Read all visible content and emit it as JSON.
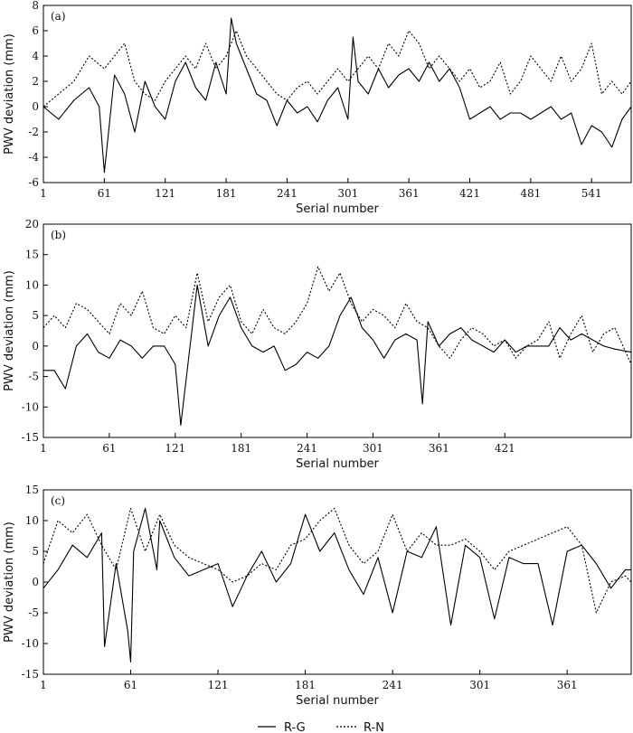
{
  "chart_data": [
    {
      "type": "line",
      "panel_label": "(a)",
      "xlabel": "Serial number",
      "ylabel": "PWV deviation (mm)",
      "xlim": [
        1,
        580
      ],
      "ylim": [
        -6,
        8
      ],
      "xticks": [
        1,
        61,
        121,
        181,
        241,
        301,
        361,
        421,
        481,
        541
      ],
      "yticks": [
        -6,
        -4,
        -2,
        0,
        2,
        4,
        6,
        8
      ],
      "series": [
        {
          "name": "R-G",
          "style": "solid",
          "x": [
            1,
            16,
            31,
            46,
            56,
            61,
            71,
            81,
            91,
            101,
            111,
            121,
            131,
            141,
            151,
            161,
            171,
            181,
            186,
            191,
            201,
            211,
            221,
            231,
            241,
            251,
            261,
            271,
            281,
            291,
            301,
            306,
            311,
            321,
            331,
            341,
            351,
            361,
            371,
            381,
            391,
            401,
            411,
            421,
            431,
            441,
            451,
            461,
            471,
            481,
            491,
            501,
            511,
            521,
            531,
            541,
            551,
            561,
            571,
            580
          ],
          "y": [
            0,
            -1,
            0.5,
            1.5,
            0,
            -5.2,
            2.5,
            1,
            -2,
            2,
            0,
            -1,
            2,
            3.5,
            1.5,
            0.5,
            3.5,
            1,
            7,
            5,
            3,
            1,
            0.5,
            -1.5,
            0.5,
            -0.5,
            0,
            -1.2,
            0.5,
            1.5,
            -1,
            5.5,
            2,
            1,
            3,
            1.5,
            2.5,
            3,
            2,
            3.5,
            2,
            3,
            1.5,
            -1,
            -0.5,
            0,
            -1,
            -0.5,
            -0.5,
            -1,
            -0.5,
            0,
            -1,
            -0.5,
            -3,
            -1.5,
            -2,
            -3.2,
            -1,
            0
          ]
        },
        {
          "name": "R-N",
          "style": "dotted",
          "x": [
            1,
            16,
            31,
            46,
            61,
            71,
            81,
            91,
            101,
            111,
            121,
            131,
            141,
            151,
            161,
            171,
            181,
            191,
            201,
            211,
            221,
            231,
            241,
            251,
            261,
            271,
            281,
            291,
            301,
            311,
            321,
            331,
            341,
            351,
            361,
            371,
            381,
            391,
            401,
            411,
            421,
            431,
            441,
            451,
            461,
            471,
            481,
            491,
            501,
            511,
            521,
            531,
            541,
            551,
            561,
            571,
            580
          ],
          "y": [
            0,
            1,
            2,
            4,
            3,
            4,
            5,
            2,
            1,
            0.5,
            2,
            3,
            4,
            3,
            5,
            3,
            4,
            6,
            4,
            3,
            2,
            1,
            0.5,
            1.5,
            2,
            1,
            2,
            3,
            2,
            3,
            4,
            3,
            5,
            4,
            6,
            5,
            3,
            4,
            3,
            2,
            3,
            1.5,
            2,
            3.5,
            1,
            2,
            4,
            3,
            2,
            4,
            2,
            3,
            5,
            1,
            2,
            1,
            2
          ]
        }
      ]
    },
    {
      "type": "line",
      "panel_label": "(b)",
      "xlabel": "Serial number",
      "ylabel": "PWV deviation (mm)",
      "xlim": [
        1,
        536
      ],
      "ylim": [
        -15,
        20
      ],
      "xticks": [
        1,
        61,
        121,
        181,
        241,
        301,
        361,
        421
      ],
      "yticks": [
        -15,
        -10,
        -5,
        0,
        5,
        10,
        15,
        20
      ],
      "series": [
        {
          "name": "R-G",
          "style": "solid",
          "x": [
            1,
            11,
            21,
            31,
            41,
            51,
            61,
            71,
            81,
            91,
            101,
            111,
            121,
            126,
            141,
            151,
            161,
            171,
            181,
            191,
            201,
            211,
            221,
            231,
            241,
            251,
            261,
            271,
            281,
            291,
            301,
            311,
            321,
            331,
            341,
            346,
            351,
            361,
            371,
            381,
            391,
            401,
            411,
            421,
            431,
            441,
            451,
            461,
            471,
            481,
            491,
            501,
            511,
            521,
            536
          ],
          "y": [
            -4,
            -4,
            -7,
            0,
            2,
            -1,
            -2,
            1,
            0,
            -2,
            0,
            0,
            -3,
            -13,
            10,
            0,
            5,
            8,
            3,
            0,
            -1,
            0,
            -4,
            -3,
            -1,
            -2,
            0,
            5,
            8,
            3,
            1,
            -2,
            1,
            2,
            1,
            -9.5,
            4,
            0,
            2,
            3,
            1,
            0,
            -1,
            1,
            -1,
            0,
            0,
            0,
            3,
            1,
            2,
            1,
            0,
            -0.5,
            -1
          ]
        },
        {
          "name": "R-N",
          "style": "dotted",
          "x": [
            1,
            11,
            21,
            31,
            41,
            51,
            61,
            71,
            81,
            91,
            101,
            111,
            121,
            131,
            141,
            151,
            161,
            171,
            181,
            191,
            201,
            211,
            221,
            231,
            241,
            251,
            261,
            271,
            281,
            291,
            301,
            311,
            321,
            331,
            341,
            351,
            361,
            371,
            381,
            391,
            401,
            411,
            421,
            431,
            441,
            451,
            461,
            471,
            481,
            491,
            501,
            511,
            521,
            536
          ],
          "y": [
            3,
            5,
            3,
            7,
            6,
            4,
            2,
            7,
            5,
            9,
            3,
            2,
            5,
            3,
            12,
            4,
            8,
            10,
            4,
            2,
            6,
            3,
            2,
            4,
            7,
            13,
            9,
            12,
            7,
            4,
            6,
            5,
            3,
            7,
            4,
            3,
            0,
            -2,
            1,
            3,
            2,
            0,
            1,
            -2,
            0,
            1,
            4,
            -2,
            2,
            5,
            -1,
            2,
            3,
            -3
          ]
        }
      ]
    },
    {
      "type": "line",
      "panel_label": "(c)",
      "xlabel": "Serial number",
      "ylabel": "PWV deviation (mm)",
      "xlim": [
        1,
        405
      ],
      "ylim": [
        -15,
        15
      ],
      "xticks": [
        1,
        61,
        121,
        181,
        241,
        301,
        361
      ],
      "yticks": [
        -15,
        -10,
        -5,
        0,
        5,
        10,
        15
      ],
      "series": [
        {
          "name": "R-G",
          "style": "solid",
          "x": [
            1,
            11,
            21,
            31,
            41,
            43,
            51,
            59,
            61,
            63,
            71,
            79,
            81,
            91,
            101,
            111,
            121,
            131,
            141,
            151,
            161,
            171,
            181,
            191,
            201,
            211,
            221,
            231,
            241,
            251,
            261,
            271,
            281,
            291,
            301,
            311,
            321,
            331,
            341,
            351,
            361,
            371,
            381,
            391,
            401,
            405
          ],
          "y": [
            -1,
            2,
            6,
            4,
            8,
            -10.5,
            3,
            -8,
            -13,
            5,
            12,
            2,
            10,
            4,
            1,
            2,
            3,
            -4,
            1,
            5,
            0,
            3,
            11,
            5,
            8,
            2,
            -2,
            4,
            -5,
            5,
            4,
            9,
            -7,
            6,
            4,
            -6,
            4,
            3,
            3,
            -7,
            5,
            6,
            3,
            -1,
            2,
            2
          ]
        },
        {
          "name": "R-N",
          "style": "dotted",
          "x": [
            1,
            11,
            21,
            31,
            41,
            51,
            61,
            71,
            81,
            91,
            101,
            111,
            121,
            131,
            141,
            151,
            161,
            171,
            181,
            191,
            201,
            211,
            221,
            231,
            241,
            251,
            261,
            271,
            281,
            291,
            301,
            311,
            321,
            331,
            341,
            351,
            361,
            371,
            381,
            391,
            401,
            405
          ],
          "y": [
            3,
            10,
            8,
            11,
            6,
            2,
            12,
            5,
            11,
            6,
            4,
            3,
            2,
            0,
            1,
            3,
            2,
            6,
            7,
            10,
            12,
            6,
            3,
            5,
            11,
            5,
            8,
            6,
            6,
            7,
            5,
            2,
            5,
            6,
            7,
            8,
            9,
            6,
            -5,
            0,
            1,
            0
          ]
        }
      ]
    }
  ],
  "legend": {
    "position": "bottom-center",
    "items": [
      {
        "label": "R-G",
        "style": "solid"
      },
      {
        "label": "R-N",
        "style": "dotted"
      }
    ]
  }
}
